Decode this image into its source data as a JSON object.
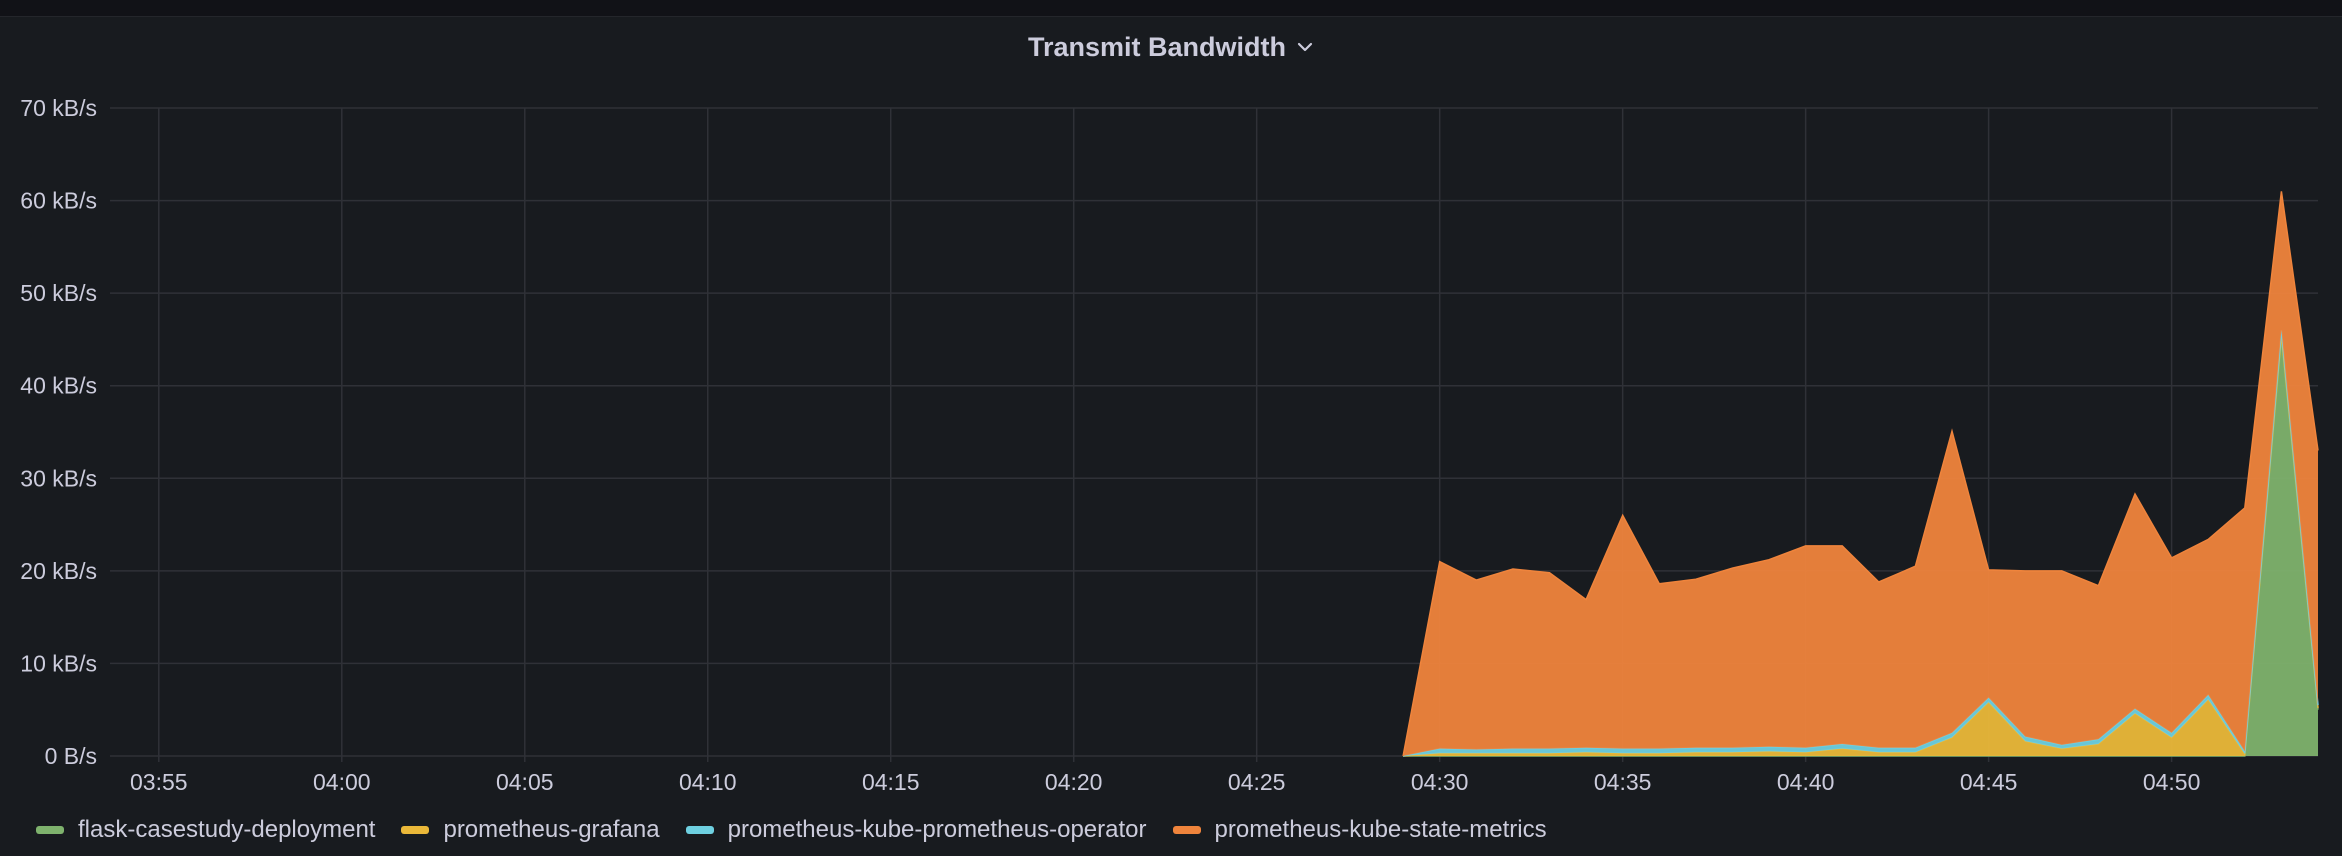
{
  "panel": {
    "title": "Transmit Bandwidth",
    "menu_icon": "chevron-down-icon"
  },
  "chart_data": {
    "type": "area",
    "stacked": true,
    "title": "Transmit Bandwidth",
    "xlabel": "",
    "ylabel": "",
    "y_unit": "kB/s",
    "ylim": [
      0,
      70
    ],
    "xlim": [
      "03:53:40",
      "04:54:00"
    ],
    "grid": true,
    "legend_position": "bottom-left",
    "y_ticks": [
      {
        "value": 0,
        "label": "0 B/s"
      },
      {
        "value": 10,
        "label": "10 kB/s"
      },
      {
        "value": 20,
        "label": "20 kB/s"
      },
      {
        "value": 30,
        "label": "30 kB/s"
      },
      {
        "value": 40,
        "label": "40 kB/s"
      },
      {
        "value": 50,
        "label": "50 kB/s"
      },
      {
        "value": 60,
        "label": "60 kB/s"
      },
      {
        "value": 70,
        "label": "70 kB/s"
      }
    ],
    "x_ticks": [
      "03:55",
      "04:00",
      "04:05",
      "04:10",
      "04:15",
      "04:20",
      "04:25",
      "04:30",
      "04:35",
      "04:40",
      "04:45",
      "04:50"
    ],
    "x": [
      "04:29:00",
      "04:30:00",
      "04:31:00",
      "04:32:00",
      "04:33:00",
      "04:34:00",
      "04:35:00",
      "04:36:00",
      "04:37:00",
      "04:38:00",
      "04:39:00",
      "04:40:00",
      "04:41:00",
      "04:42:00",
      "04:43:00",
      "04:44:00",
      "04:45:00",
      "04:46:00",
      "04:47:00",
      "04:48:00",
      "04:49:00",
      "04:50:00",
      "04:51:00",
      "04:52:00",
      "04:53:00",
      "04:54:00"
    ],
    "series": [
      {
        "name": "flask-casestudy-deployment",
        "color": "#7eb26d",
        "values": [
          0,
          0,
          0,
          0,
          0,
          0,
          0,
          0,
          0,
          0,
          0,
          0,
          0,
          0,
          0,
          0,
          0,
          0,
          0,
          0,
          0,
          0,
          0,
          0,
          45,
          5
        ]
      },
      {
        "name": "prometheus-grafana",
        "color": "#eab839",
        "values": [
          0,
          0.3,
          0.3,
          0.3,
          0.3,
          0.4,
          0.3,
          0.3,
          0.4,
          0.4,
          0.5,
          0.4,
          0.8,
          0.4,
          0.4,
          2.0,
          5.8,
          1.6,
          0.8,
          1.3,
          4.6,
          2.0,
          6.1,
          0.2,
          0.5,
          0.2
        ]
      },
      {
        "name": "prometheus-kube-prometheus-operator",
        "color": "#6ed0e0",
        "values": [
          0,
          0.5,
          0.4,
          0.5,
          0.5,
          0.5,
          0.5,
          0.5,
          0.5,
          0.5,
          0.5,
          0.5,
          0.5,
          0.5,
          0.5,
          0.5,
          0.5,
          0.5,
          0.4,
          0.5,
          0.5,
          0.5,
          0.5,
          0.3,
          0.5,
          0.3
        ]
      },
      {
        "name": "prometheus-kube-state-metrics",
        "color": "#ef843c",
        "values": [
          0,
          20.2,
          18.3,
          19.4,
          19.0,
          16.0,
          25.2,
          17.8,
          18.2,
          19.4,
          20.2,
          21.8,
          21.4,
          17.9,
          19.6,
          32.6,
          13.8,
          17.9,
          18.8,
          16.6,
          23.2,
          18.9,
          16.8,
          26.3,
          15.0,
          27.5
        ]
      }
    ]
  }
}
